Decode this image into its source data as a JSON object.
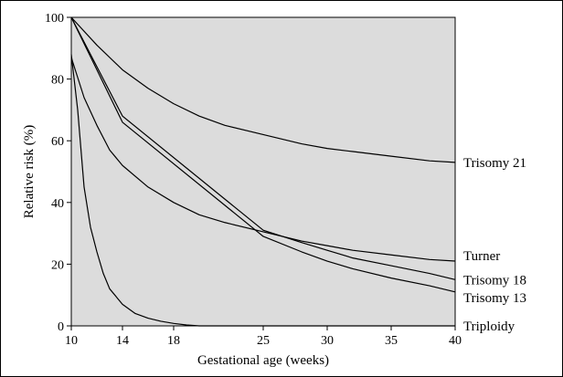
{
  "chart_data": {
    "type": "line",
    "title": "",
    "xlabel": "Gestational age (weeks)",
    "ylabel": "Relative risk (%)",
    "xlim": [
      10,
      40
    ],
    "ylim": [
      0,
      100
    ],
    "x_ticks": [
      "10",
      "14",
      "18",
      "25",
      "30",
      "35",
      "40"
    ],
    "y_ticks": [
      "0",
      "20",
      "40",
      "60",
      "80",
      "100"
    ],
    "x_tick_values": [
      10,
      14,
      18,
      25,
      30,
      35,
      40
    ],
    "y_tick_values": [
      0,
      20,
      40,
      60,
      80,
      100
    ],
    "background_color": "#dcdcdc",
    "line_color": "#000000",
    "grid": false,
    "legend": "series labels at right end of each line",
    "series": [
      {
        "name": "Trisomy 21",
        "x": [
          10,
          12,
          14,
          16,
          18,
          20,
          22,
          25,
          28,
          30,
          32,
          35,
          38,
          40
        ],
        "y": [
          100,
          91,
          83,
          77,
          72,
          68,
          65,
          62,
          59,
          57.5,
          56.5,
          55,
          53.5,
          53
        ]
      },
      {
        "name": "Turner",
        "x": [
          10,
          11,
          12,
          13,
          14,
          16,
          18,
          20,
          22,
          25,
          28,
          30,
          32,
          35,
          38,
          40
        ],
        "y": [
          87,
          74,
          65,
          57,
          52,
          45,
          40,
          36,
          33.5,
          30.5,
          27.5,
          26,
          24.5,
          23,
          21.5,
          21
        ]
      },
      {
        "name": "Trisomy 18",
        "x": [
          10,
          14,
          25,
          28,
          30,
          32,
          35,
          38,
          40
        ],
        "y": [
          100,
          68,
          31,
          27,
          24.5,
          22,
          19.5,
          17,
          15
        ]
      },
      {
        "name": "Trisomy 13",
        "x": [
          10,
          14,
          25,
          28,
          30,
          32,
          35,
          38,
          40
        ],
        "y": [
          100,
          66,
          29,
          24,
          21,
          18.5,
          15.5,
          13,
          11
        ]
      },
      {
        "name": "Triploidy",
        "x": [
          10,
          10.5,
          11,
          11.5,
          12,
          12.5,
          13,
          14,
          15,
          16,
          17,
          18,
          19,
          20,
          25,
          30,
          35,
          40
        ],
        "y": [
          88,
          70,
          45,
          32,
          24,
          17,
          12,
          7,
          4,
          2.5,
          1.5,
          0.8,
          0.3,
          0,
          0,
          0,
          0,
          0
        ]
      }
    ]
  }
}
